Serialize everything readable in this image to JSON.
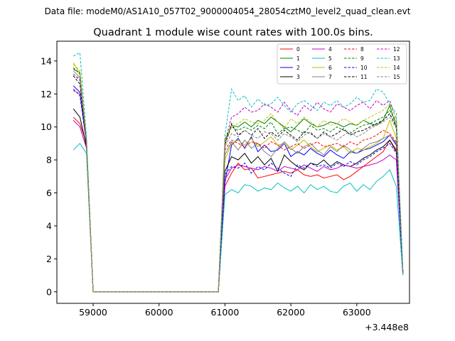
{
  "suptitle": "Data file: modeM0/AS1A10_057T02_9000004054_28054cztM0_level2_quad_clean.evt",
  "chart_data": {
    "type": "line",
    "title": "Quadrant 1 module wise count rates with 100.0s bins.",
    "xlabel": "",
    "ylabel": "",
    "x_offset_label": "+3.448e8",
    "xlim": [
      58450,
      63800
    ],
    "ylim": [
      -0.7,
      15.2
    ],
    "x_ticks": [
      59000,
      60000,
      61000,
      62000,
      63000
    ],
    "y_ticks": [
      0,
      2,
      4,
      6,
      8,
      10,
      12,
      14
    ],
    "grid": false,
    "legend_position": "top-right",
    "x": [
      58700,
      58800,
      58900,
      59000,
      59100,
      59200,
      59300,
      59400,
      59500,
      59600,
      59700,
      59800,
      59900,
      60000,
      60100,
      60200,
      60300,
      60400,
      60500,
      60600,
      60700,
      60800,
      60900,
      61000,
      61100,
      61200,
      61300,
      61400,
      61500,
      61600,
      61700,
      61800,
      61900,
      62000,
      62100,
      62200,
      62300,
      62400,
      62500,
      62600,
      62700,
      62800,
      62900,
      63000,
      63100,
      63200,
      63300,
      63400,
      63500,
      63600,
      63700
    ],
    "series": [
      {
        "name": "0",
        "color": "#ff0000",
        "dash": false,
        "values": [
          10.6,
          10.2,
          9.0,
          0.0,
          0.0,
          0.0,
          0.0,
          0.0,
          0.0,
          0.0,
          0.0,
          0.0,
          0.0,
          0.0,
          0.0,
          0.0,
          0.0,
          0.0,
          0.0,
          0.0,
          0.0,
          0.0,
          0.0,
          6.4,
          7.2,
          7.8,
          7.4,
          7.5,
          6.9,
          7.0,
          7.1,
          7.2,
          7.3,
          7.2,
          7.4,
          7.1,
          7.0,
          7.1,
          6.9,
          7.0,
          7.1,
          6.8,
          7.0,
          7.3,
          7.6,
          7.9,
          8.2,
          8.5,
          9.2,
          8.6,
          1.2
        ]
      },
      {
        "name": "1",
        "color": "#008000",
        "dash": false,
        "values": [
          13.5,
          13.3,
          9.2,
          0.0,
          0.0,
          0.0,
          0.0,
          0.0,
          0.0,
          0.0,
          0.0,
          0.0,
          0.0,
          0.0,
          0.0,
          0.0,
          0.0,
          0.0,
          0.0,
          0.0,
          0.0,
          0.0,
          0.0,
          9.2,
          10.1,
          10.0,
          10.3,
          10.0,
          10.4,
          10.2,
          10.6,
          10.3,
          10.0,
          9.7,
          10.1,
          10.5,
          10.2,
          10.0,
          10.1,
          10.3,
          10.2,
          10.0,
          10.2,
          10.1,
          10.4,
          10.2,
          10.1,
          10.4,
          11.3,
          10.0,
          1.1
        ]
      },
      {
        "name": "2",
        "color": "#0000ff",
        "dash": false,
        "values": [
          12.5,
          12.1,
          9.0,
          0.0,
          0.0,
          0.0,
          0.0,
          0.0,
          0.0,
          0.0,
          0.0,
          0.0,
          0.0,
          0.0,
          0.0,
          0.0,
          0.0,
          0.0,
          0.0,
          0.0,
          0.0,
          0.0,
          0.0,
          6.6,
          8.9,
          9.3,
          8.7,
          9.4,
          8.5,
          8.9,
          8.5,
          8.6,
          9.0,
          8.2,
          8.5,
          8.3,
          8.7,
          8.4,
          8.2,
          8.6,
          8.3,
          8.1,
          8.5,
          8.4,
          8.6,
          8.7,
          8.9,
          9.1,
          9.5,
          8.9,
          1.1
        ]
      },
      {
        "name": "3",
        "color": "#000000",
        "dash": false,
        "values": [
          11.1,
          10.6,
          8.8,
          0.0,
          0.0,
          0.0,
          0.0,
          0.0,
          0.0,
          0.0,
          0.0,
          0.0,
          0.0,
          0.0,
          0.0,
          0.0,
          0.0,
          0.0,
          0.0,
          0.0,
          0.0,
          0.0,
          0.0,
          7.3,
          8.2,
          8.0,
          8.4,
          7.8,
          8.2,
          7.7,
          8.1,
          7.3,
          8.3,
          7.9,
          7.6,
          7.4,
          7.8,
          7.7,
          8.0,
          7.6,
          7.9,
          7.7,
          7.6,
          7.8,
          8.1,
          8.3,
          8.6,
          8.8,
          9.2,
          8.5,
          1.1
        ]
      },
      {
        "name": "4",
        "color": "#c000c0",
        "dash": false,
        "values": [
          10.4,
          10.0,
          8.7,
          0.0,
          0.0,
          0.0,
          0.0,
          0.0,
          0.0,
          0.0,
          0.0,
          0.0,
          0.0,
          0.0,
          0.0,
          0.0,
          0.0,
          0.0,
          0.0,
          0.0,
          0.0,
          0.0,
          0.0,
          6.8,
          7.5,
          7.7,
          7.6,
          7.5,
          7.4,
          7.6,
          7.5,
          7.3,
          7.6,
          7.5,
          7.4,
          7.7,
          7.5,
          7.3,
          7.6,
          7.4,
          7.5,
          7.7,
          7.6,
          7.5,
          7.6,
          7.7,
          7.8,
          8.0,
          8.3,
          8.0,
          1.1
        ]
      },
      {
        "name": "5",
        "color": "#00c0c0",
        "dash": false,
        "values": [
          8.6,
          9.0,
          8.4,
          0.0,
          0.0,
          0.0,
          0.0,
          0.0,
          0.0,
          0.0,
          0.0,
          0.0,
          0.0,
          0.0,
          0.0,
          0.0,
          0.0,
          0.0,
          0.0,
          0.0,
          0.0,
          0.0,
          0.0,
          5.9,
          6.2,
          6.0,
          6.5,
          6.4,
          6.1,
          6.3,
          6.2,
          6.6,
          6.3,
          6.1,
          6.4,
          6.0,
          6.5,
          6.2,
          6.4,
          6.1,
          6.0,
          6.4,
          6.6,
          6.1,
          6.5,
          6.2,
          6.7,
          7.0,
          7.4,
          6.4,
          1.0
        ]
      },
      {
        "name": "6",
        "color": "#bfbf00",
        "dash": false,
        "values": [
          13.9,
          13.2,
          9.1,
          0.0,
          0.0,
          0.0,
          0.0,
          0.0,
          0.0,
          0.0,
          0.0,
          0.0,
          0.0,
          0.0,
          0.0,
          0.0,
          0.0,
          0.0,
          0.0,
          0.0,
          0.0,
          0.0,
          0.0,
          8.0,
          9.0,
          9.2,
          8.9,
          9.3,
          8.8,
          9.1,
          9.4,
          8.9,
          9.0,
          8.6,
          8.9,
          9.2,
          8.8,
          8.5,
          8.7,
          8.9,
          8.6,
          8.8,
          8.4,
          8.7,
          8.6,
          8.8,
          9.0,
          9.3,
          10.4,
          9.3,
          1.3
        ]
      },
      {
        "name": "7",
        "color": "#808080",
        "dash": false,
        "values": [
          13.4,
          13.0,
          9.1,
          0.0,
          0.0,
          0.0,
          0.0,
          0.0,
          0.0,
          0.0,
          0.0,
          0.0,
          0.0,
          0.0,
          0.0,
          0.0,
          0.0,
          0.0,
          0.0,
          0.0,
          0.0,
          0.0,
          0.0,
          8.3,
          9.1,
          8.6,
          9.2,
          8.7,
          9.0,
          8.5,
          8.2,
          8.7,
          9.1,
          8.7,
          8.4,
          8.8,
          9.0,
          8.6,
          8.3,
          8.8,
          8.5,
          8.9,
          8.6,
          8.4,
          8.7,
          9.0,
          9.1,
          9.3,
          9.5,
          9.0,
          1.2
        ]
      },
      {
        "name": "8",
        "color": "#ff0000",
        "dash": true,
        "values": [
          12.2,
          12.0,
          9.0,
          0.0,
          0.0,
          0.0,
          0.0,
          0.0,
          0.0,
          0.0,
          0.0,
          0.0,
          0.0,
          0.0,
          0.0,
          0.0,
          0.0,
          0.0,
          0.0,
          0.0,
          0.0,
          0.0,
          0.0,
          8.6,
          9.2,
          9.0,
          8.8,
          9.1,
          9.0,
          8.7,
          9.1,
          8.9,
          8.6,
          8.8,
          9.0,
          8.7,
          8.9,
          9.1,
          8.8,
          8.9,
          9.0,
          8.8,
          9.1,
          8.9,
          9.2,
          9.3,
          9.5,
          9.8,
          9.6,
          9.1,
          1.2
        ]
      },
      {
        "name": "9",
        "color": "#008000",
        "dash": true,
        "values": [
          13.6,
          13.2,
          9.1,
          0.0,
          0.0,
          0.0,
          0.0,
          0.0,
          0.0,
          0.0,
          0.0,
          0.0,
          0.0,
          0.0,
          0.0,
          0.0,
          0.0,
          0.0,
          0.0,
          0.0,
          0.0,
          0.0,
          0.0,
          9.0,
          10.0,
          9.8,
          10.0,
          9.8,
          10.1,
          9.9,
          10.3,
          9.6,
          9.9,
          10.0,
          9.8,
          9.6,
          10.1,
          9.8,
          9.9,
          9.7,
          10.0,
          9.8,
          9.6,
          9.9,
          10.1,
          10.2,
          10.4,
          10.6,
          11.0,
          10.3,
          1.2
        ]
      },
      {
        "name": "10",
        "color": "#0000ff",
        "dash": true,
        "values": [
          12.3,
          11.9,
          9.0,
          0.0,
          0.0,
          0.0,
          0.0,
          0.0,
          0.0,
          0.0,
          0.0,
          0.0,
          0.0,
          0.0,
          0.0,
          0.0,
          0.0,
          0.0,
          0.0,
          0.0,
          0.0,
          0.0,
          0.0,
          7.1,
          7.6,
          7.5,
          7.8,
          7.2,
          7.6,
          7.4,
          7.8,
          7.5,
          7.2,
          7.0,
          7.7,
          7.5,
          7.8,
          7.6,
          7.7,
          7.5,
          7.8,
          7.6,
          7.9,
          7.7,
          8.0,
          8.2,
          8.5,
          8.7,
          9.0,
          8.4,
          1.1
        ]
      },
      {
        "name": "11",
        "color": "#000000",
        "dash": true,
        "values": [
          13.1,
          12.6,
          9.0,
          0.0,
          0.0,
          0.0,
          0.0,
          0.0,
          0.0,
          0.0,
          0.0,
          0.0,
          0.0,
          0.0,
          0.0,
          0.0,
          0.0,
          0.0,
          0.0,
          0.0,
          0.0,
          0.0,
          0.0,
          8.9,
          10.2,
          9.5,
          9.8,
          9.5,
          9.9,
          9.3,
          9.7,
          9.4,
          9.8,
          9.5,
          9.2,
          9.7,
          9.6,
          9.3,
          9.7,
          9.4,
          9.6,
          9.9,
          9.5,
          9.7,
          9.8,
          10.0,
          10.2,
          10.4,
          10.8,
          10.0,
          1.1
        ]
      },
      {
        "name": "12",
        "color": "#c000c0",
        "dash": true,
        "values": [
          13.2,
          12.9,
          9.1,
          0.0,
          0.0,
          0.0,
          0.0,
          0.0,
          0.0,
          0.0,
          0.0,
          0.0,
          0.0,
          0.0,
          0.0,
          0.0,
          0.0,
          0.0,
          0.0,
          0.0,
          0.0,
          0.0,
          0.0,
          9.1,
          10.6,
          10.8,
          11.2,
          10.9,
          11.0,
          11.4,
          11.2,
          10.9,
          11.5,
          11.0,
          10.7,
          11.3,
          11.0,
          11.5,
          11.1,
          10.9,
          11.4,
          11.2,
          11.0,
          11.3,
          11.5,
          11.1,
          11.6,
          11.3,
          11.6,
          10.4,
          1.2
        ]
      },
      {
        "name": "13",
        "color": "#00c0c0",
        "dash": true,
        "values": [
          14.3,
          14.5,
          9.4,
          0.0,
          0.0,
          0.0,
          0.0,
          0.0,
          0.0,
          0.0,
          0.0,
          0.0,
          0.0,
          0.0,
          0.0,
          0.0,
          0.0,
          0.0,
          0.0,
          0.0,
          0.0,
          0.0,
          0.0,
          9.5,
          12.3,
          11.6,
          11.9,
          11.2,
          11.7,
          11.3,
          11.4,
          11.8,
          11.3,
          10.9,
          11.4,
          11.6,
          11.3,
          11.0,
          11.5,
          11.3,
          11.6,
          11.2,
          11.4,
          11.8,
          11.5,
          11.6,
          12.3,
          12.1,
          11.4,
          10.8,
          1.3
        ]
      },
      {
        "name": "14",
        "color": "#bfbf00",
        "dash": true,
        "values": [
          13.8,
          13.4,
          9.2,
          0.0,
          0.0,
          0.0,
          0.0,
          0.0,
          0.0,
          0.0,
          0.0,
          0.0,
          0.0,
          0.0,
          0.0,
          0.0,
          0.0,
          0.0,
          0.0,
          0.0,
          0.0,
          0.0,
          0.0,
          9.3,
          10.0,
          10.2,
          10.5,
          10.3,
          10.2,
          10.4,
          10.8,
          10.3,
          9.9,
          10.5,
          10.2,
          10.6,
          10.3,
          10.0,
          10.4,
          10.1,
          10.2,
          10.5,
          10.3,
          10.1,
          10.4,
          10.6,
          10.8,
          11.0,
          11.4,
          10.5,
          1.2
        ]
      },
      {
        "name": "15",
        "color": "#808080",
        "dash": true,
        "values": [
          13.2,
          12.8,
          9.0,
          0.0,
          0.0,
          0.0,
          0.0,
          0.0,
          0.0,
          0.0,
          0.0,
          0.0,
          0.0,
          0.0,
          0.0,
          0.0,
          0.0,
          0.0,
          0.0,
          0.0,
          0.0,
          0.0,
          0.0,
          8.8,
          9.6,
          9.4,
          9.8,
          9.5,
          9.3,
          9.7,
          9.6,
          9.2,
          9.6,
          9.4,
          9.1,
          9.5,
          9.7,
          9.3,
          9.6,
          9.4,
          9.2,
          9.5,
          9.7,
          9.4,
          9.6,
          9.9,
          10.1,
          10.3,
          10.6,
          9.9,
          1.1
        ]
      }
    ]
  }
}
